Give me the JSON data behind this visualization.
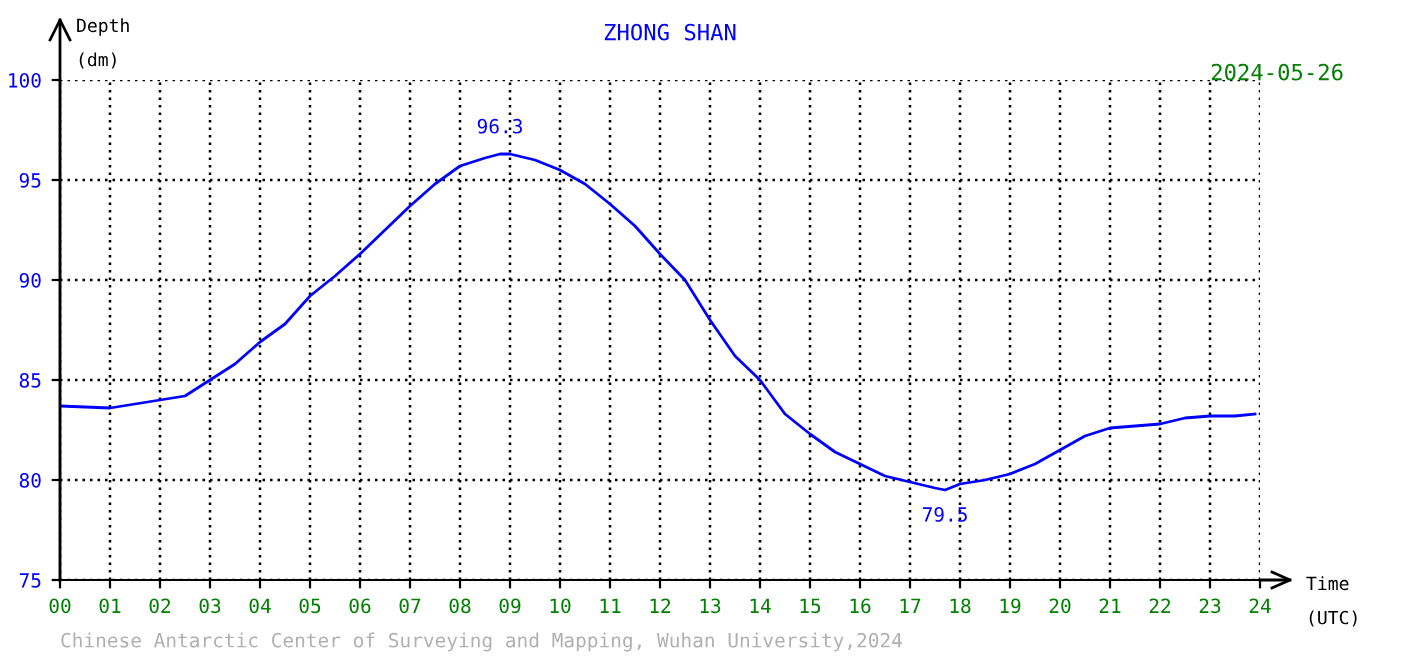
{
  "chart_data": {
    "type": "line",
    "title": "ZHONG SHAN",
    "subtitle": "2024-05-26",
    "xlabel": "Time\n(UTC)",
    "ylabel": "Depth\n(dm)",
    "x": [
      0,
      1,
      2,
      2.5,
      3,
      3.5,
      4,
      4.5,
      5,
      5.5,
      6,
      6.5,
      7,
      7.5,
      8,
      8.5,
      8.8,
      9,
      9.5,
      10,
      10.5,
      11,
      11.5,
      12,
      12.5,
      13,
      13.5,
      14,
      14.5,
      15,
      15.5,
      16,
      16.5,
      17,
      17.5,
      17.7,
      18,
      18.5,
      19,
      19.5,
      20,
      20.5,
      21,
      21.5,
      22,
      22.5,
      23,
      23.5,
      23.9
    ],
    "series": [
      {
        "color": "#0000ff",
        "values": [
          83.7,
          83.6,
          84.0,
          84.2,
          85.0,
          85.8,
          86.9,
          87.8,
          89.2,
          90.2,
          91.3,
          92.5,
          93.7,
          94.8,
          95.7,
          96.1,
          96.3,
          96.3,
          96.0,
          95.5,
          94.8,
          93.8,
          92.7,
          91.3,
          90.0,
          88.0,
          86.2,
          85.0,
          83.3,
          82.3,
          81.4,
          80.8,
          80.2,
          79.9,
          79.6,
          79.5,
          79.8,
          80.0,
          80.3,
          80.8,
          81.5,
          82.2,
          82.6,
          82.7,
          82.8,
          83.1,
          83.2,
          83.2,
          83.3
        ]
      }
    ],
    "xlim": [
      0,
      24
    ],
    "ylim": [
      75,
      100
    ],
    "xticks": [
      {
        "value": 0,
        "label": "00"
      },
      {
        "value": 1,
        "label": "01"
      },
      {
        "value": 2,
        "label": "02"
      },
      {
        "value": 3,
        "label": "03"
      },
      {
        "value": 4,
        "label": "04"
      },
      {
        "value": 5,
        "label": "05"
      },
      {
        "value": 6,
        "label": "06"
      },
      {
        "value": 7,
        "label": "07"
      },
      {
        "value": 8,
        "label": "08"
      },
      {
        "value": 9,
        "label": "09"
      },
      10,
      11,
      12,
      13,
      14,
      15,
      16,
      17,
      18,
      19,
      20,
      21,
      22,
      23,
      24
    ],
    "yticks": [
      75,
      80,
      85,
      90,
      95,
      100
    ],
    "grid": true,
    "line_style": "solid",
    "marker": "none",
    "annotations": [
      {
        "text": "96.3",
        "x": 8.8,
        "y": 96.3
      },
      {
        "text": "79.5",
        "x": 17.7,
        "y": 79.5
      },
      "Chinese Antarctic Center of Surveying and Mapping, Wuhan University,2024"
    ]
  }
}
